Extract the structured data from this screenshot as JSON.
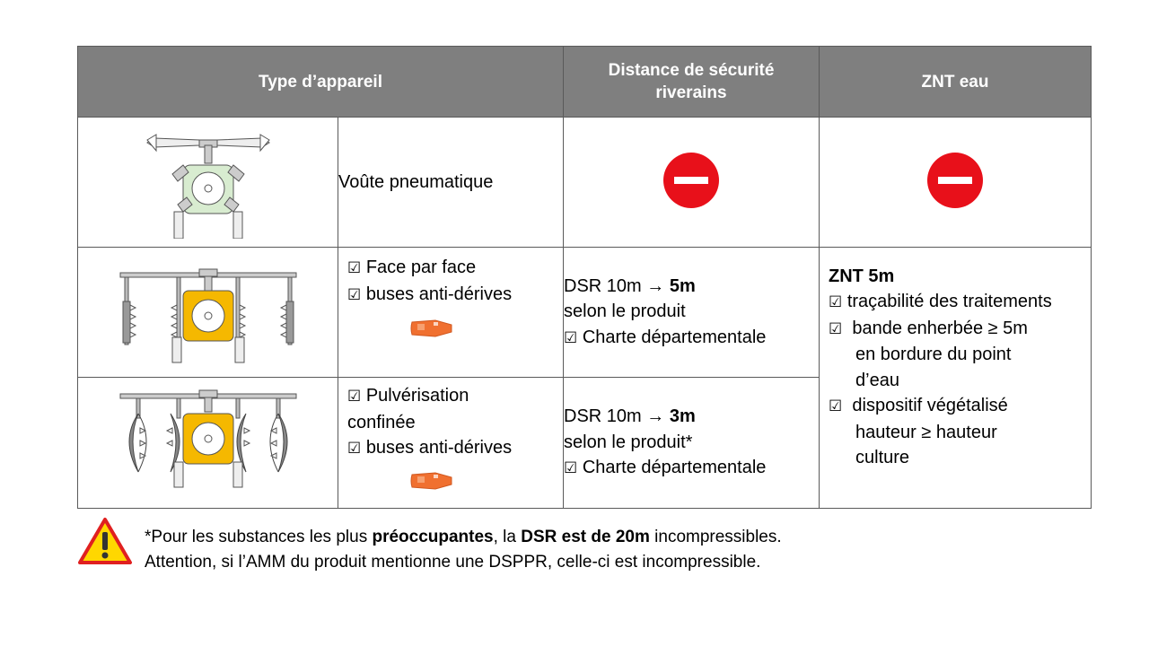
{
  "headers": {
    "type": "Type d’appareil",
    "dsr": "Distance de sécurité riverains",
    "znt": "ZNT eau"
  },
  "rows": [
    {
      "device": "Voûte pneumatique",
      "dsr_icon": "no-entry-icon",
      "znt_icon": "no-entry-icon"
    },
    {
      "device_line1": "Face par face",
      "device_line2": "buses anti-dérives",
      "dsr_a": "DSR 10m",
      "dsr_arrow": "→",
      "dsr_b": "5m",
      "dsr_c": "selon le produit",
      "dsr_d": "Charte départementale"
    },
    {
      "device_line1a": "Pulvérisation",
      "device_line1b": "confinée",
      "device_line2": "buses anti-dérives",
      "dsr_a": "DSR 10m",
      "dsr_arrow": "→",
      "dsr_b": "3m",
      "dsr_c": "selon le produit*",
      "dsr_d": "Charte départementale"
    }
  ],
  "znt": {
    "title": "ZNT 5m",
    "item1": "traçabilité des traitements",
    "item2a": "bande enherbée ≥ 5m",
    "item2b": "en bordure du point",
    "item2c": "d’eau",
    "item3a": "dispositif végétalisé",
    "item3b": "hauteur ≥ hauteur",
    "item3c": "culture"
  },
  "checkbox_glyph": "☑",
  "footer": {
    "line1_a": "*Pour les substances les plus ",
    "line1_b": "préoccupantes",
    "line1_c": ", la ",
    "line1_d": "DSR est de 20m",
    "line1_e": " incompressibles.",
    "line2": "Attention, si l’AMM du produit mentionne une DSPPR, celle-ci est incompressible."
  },
  "colors": {
    "header_bg": "#7f7f7f",
    "no_entry": "#e8101a",
    "nozzle": "#f07030",
    "tank_yellow": "#f5b800",
    "tank_green": "#d8ecd0"
  }
}
